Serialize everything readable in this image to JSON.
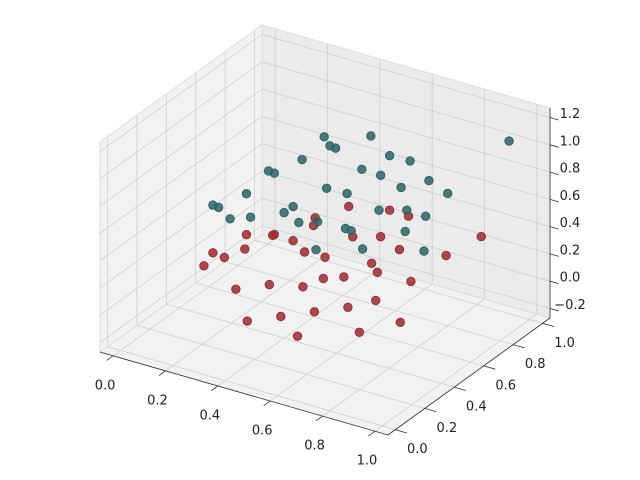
{
  "chart_data": {
    "type": "scatter3d",
    "xlim": [
      -0.05,
      1.05
    ],
    "ylim": [
      -0.05,
      1.05
    ],
    "zlim": [
      -0.27,
      1.27
    ],
    "xticks": [
      {
        "value": 0,
        "label": "0.0"
      },
      {
        "value": 0.2,
        "label": "0.2"
      },
      {
        "value": 0.4,
        "label": "0.4"
      },
      {
        "value": 0.6,
        "label": "0.6"
      },
      {
        "value": 0.8,
        "label": "0.8"
      },
      {
        "value": 1,
        "label": "1.0"
      }
    ],
    "yticks": [
      {
        "value": 0,
        "label": "0.0"
      },
      {
        "value": 0.2,
        "label": "0.2"
      },
      {
        "value": 0.4,
        "label": "0.4"
      },
      {
        "value": 0.6,
        "label": "0.6"
      },
      {
        "value": 0.8,
        "label": "0.8"
      },
      {
        "value": 1,
        "label": "1.0"
      }
    ],
    "zticks": [
      {
        "value": -0.2,
        "label": "−0.2"
      },
      {
        "value": 0,
        "label": "0.0"
      },
      {
        "value": 0.2,
        "label": "0.2"
      },
      {
        "value": 0.4,
        "label": "0.4"
      },
      {
        "value": 0.6,
        "label": "0.6"
      },
      {
        "value": 0.8,
        "label": "0.8"
      },
      {
        "value": 1,
        "label": "1.0"
      },
      {
        "value": 1.2,
        "label": "1.2"
      }
    ],
    "grid": true,
    "series": [
      {
        "color": "#9b2d30",
        "x": [
          0.15,
          0.2,
          0.25,
          0.1,
          0.3,
          0.35,
          0.4,
          0.45,
          0.5,
          0.55,
          0.6,
          0.65,
          0.7,
          0.75,
          0.8,
          0.85,
          0.9,
          0.3,
          0.4,
          0.5,
          0.6,
          0.7,
          0.45,
          0.55,
          0.35,
          0.65,
          0.25,
          0.5,
          0.6,
          0.8,
          0.9,
          0.4,
          0.2,
          0.7,
          0.55,
          0.62
        ],
        "y": [
          0.3,
          0.35,
          0.4,
          0.45,
          0.5,
          0.55,
          0.6,
          0.45,
          0.5,
          0.6,
          0.7,
          0.8,
          0.5,
          0.4,
          0.55,
          0.7,
          0.85,
          0.25,
          0.3,
          0.2,
          0.25,
          0.3,
          0.75,
          0.85,
          0.7,
          0.55,
          0.6,
          0.35,
          0.45,
          0.2,
          0.3,
          0.15,
          0.5,
          0.65,
          0.4,
          0.1
        ],
        "z": [
          0.2,
          0.25,
          0.3,
          0.15,
          0.35,
          0.3,
          0.4,
          0.35,
          0.3,
          0.4,
          0.35,
          0.45,
          0.3,
          0.2,
          0.25,
          0.35,
          0.4,
          0.15,
          0.2,
          0.1,
          0.15,
          0.2,
          0.45,
          0.4,
          0.35,
          0.3,
          0.25,
          0.2,
          0.25,
          0.15,
          0.2,
          0.05,
          0.3,
          0.35,
          0.25,
          0.1
        ]
      },
      {
        "color": "#2e6466",
        "x": [
          0.15,
          0.2,
          0.25,
          0.1,
          0.3,
          0.35,
          0.4,
          0.45,
          0.5,
          0.55,
          0.6,
          0.65,
          0.7,
          0.75,
          0.8,
          0.85,
          0.3,
          0.4,
          0.5,
          0.6,
          0.7,
          0.45,
          0.55,
          0.35,
          0.65,
          0.25,
          0.5,
          0.6,
          0.8,
          0.4,
          0.2,
          0.7,
          0.55,
          0.3,
          0.95
        ],
        "y": [
          0.4,
          0.5,
          0.6,
          0.45,
          0.7,
          0.8,
          0.75,
          0.6,
          0.65,
          0.85,
          0.9,
          0.75,
          0.7,
          0.6,
          0.65,
          0.55,
          0.35,
          0.4,
          0.45,
          0.5,
          0.85,
          0.9,
          0.55,
          0.55,
          0.6,
          0.3,
          0.75,
          0.7,
          0.8,
          0.5,
          0.65,
          0.4,
          0.35,
          0.85,
          0.95
        ],
        "z": [
          0.55,
          0.6,
          0.7,
          0.5,
          0.75,
          0.8,
          0.85,
          0.7,
          0.65,
          0.8,
          0.75,
          0.7,
          0.6,
          0.55,
          0.65,
          0.5,
          0.6,
          0.65,
          0.6,
          0.55,
          0.7,
          0.85,
          0.5,
          0.55,
          0.65,
          0.6,
          0.75,
          0.8,
          0.7,
          0.5,
          0.65,
          0.55,
          0.5,
          0.8,
          1.05
        ]
      }
    ]
  }
}
